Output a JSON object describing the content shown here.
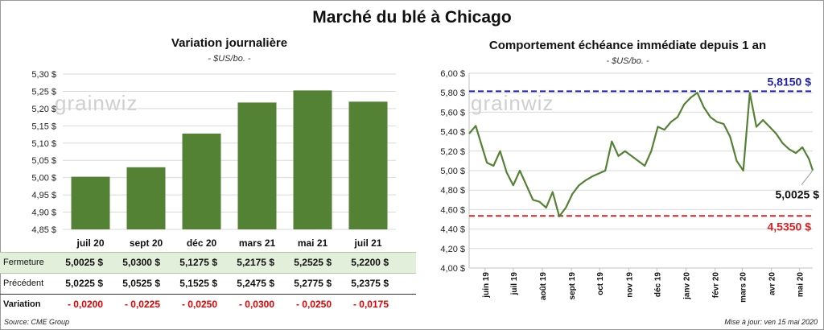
{
  "title": "Marché du blé à Chicago",
  "left": {
    "title": "Variation journalière",
    "unit": "- $US/bo. -",
    "watermark": "grainwiz",
    "row_labels": {
      "close": "Fermeture",
      "previous": "Précédent",
      "change": "Variation"
    },
    "close": [
      "5,0025  $",
      "5,0300  $",
      "5,1275  $",
      "5,2175  $",
      "5,2525  $",
      "5,2200  $"
    ],
    "previous": [
      "5,0225  $",
      "5,0525  $",
      "5,1525  $",
      "5,2475  $",
      "5,2775  $",
      "5,2375  $"
    ],
    "change": [
      "- 0,0200",
      "- 0,0225",
      "- 0,0250",
      "- 0,0300",
      "- 0,0250",
      "- 0,0175"
    ]
  },
  "right": {
    "title": "Comportement  échéance immédiate depuis 1 an",
    "unit": "- $US/bo. -",
    "watermark": "grainwiz"
  },
  "footer": {
    "source": "Source: CME Group",
    "updated": "Mise à jour: ven 15 mai 2020"
  },
  "colors": {
    "bar": "#548235",
    "line": "#548235",
    "high": "#1f1fb4",
    "low": "#e02020",
    "table_bg": "#e2efda",
    "negative": "#e00000"
  },
  "chart_data": [
    {
      "type": "bar",
      "title": "Variation journalière",
      "ylabel": "- $US/bo. -",
      "categories": [
        "juil 20",
        "sept 20",
        "déc 20",
        "mars 21",
        "mai 21",
        "juil 21"
      ],
      "values": [
        5.0025,
        5.03,
        5.1275,
        5.2175,
        5.2525,
        5.22
      ],
      "ylim": [
        4.85,
        5.3
      ],
      "yticks": [
        "4,85 $",
        "4,90 $",
        "4,95 $",
        "5,00 $",
        "5,05 $",
        "5,10 $",
        "5,15 $",
        "5,20 $",
        "5,25 $",
        "5,30 $"
      ],
      "grid": true
    },
    {
      "type": "line",
      "title": "Comportement  échéance immédiate depuis 1 an",
      "ylabel": "- $US/bo. -",
      "ylim": [
        4.0,
        6.0
      ],
      "yticks": [
        "4,00 $",
        "4,20 $",
        "4,40 $",
        "4,60 $",
        "4,80 $",
        "5,00 $",
        "5,20 $",
        "5,40 $",
        "5,60 $",
        "5,80 $",
        "6,00 $"
      ],
      "xlabels": [
        "juin 19",
        "juil 19",
        "août 19",
        "sept 19",
        "oct 19",
        "nov 19",
        "déc 19",
        "janv 20",
        "févr 20",
        "mars 20",
        "avr 20",
        "mai 20"
      ],
      "x": [
        "2019-05-15",
        "2019-05-22",
        "2019-05-29",
        "2019-06-03",
        "2019-06-10",
        "2019-06-17",
        "2019-06-24",
        "2019-07-01",
        "2019-07-08",
        "2019-07-15",
        "2019-07-22",
        "2019-07-29",
        "2019-08-05",
        "2019-08-12",
        "2019-08-19",
        "2019-08-26",
        "2019-09-02",
        "2019-09-09",
        "2019-09-16",
        "2019-09-23",
        "2019-09-30",
        "2019-10-07",
        "2019-10-14",
        "2019-10-21",
        "2019-10-28",
        "2019-11-04",
        "2019-11-11",
        "2019-11-18",
        "2019-11-25",
        "2019-12-02",
        "2019-12-09",
        "2019-12-16",
        "2019-12-23",
        "2019-12-30",
        "2020-01-06",
        "2020-01-13",
        "2020-01-20",
        "2020-01-27",
        "2020-02-03",
        "2020-02-10",
        "2020-02-17",
        "2020-02-24",
        "2020-03-02",
        "2020-03-09",
        "2020-03-16",
        "2020-03-23",
        "2020-03-30",
        "2020-04-06",
        "2020-04-13",
        "2020-04-20",
        "2020-04-27",
        "2020-05-04",
        "2020-05-11",
        "2020-05-15"
      ],
      "series": [
        {
          "values": [
            5.38,
            5.46,
            5.24,
            5.08,
            5.05,
            5.2,
            4.98,
            4.85,
            5.0,
            4.85,
            4.7,
            4.68,
            4.62,
            4.78,
            4.53,
            4.62,
            4.76,
            4.85,
            4.9,
            4.94,
            4.97,
            5.0,
            5.3,
            5.15,
            5.2,
            5.15,
            5.1,
            5.05,
            5.2,
            5.45,
            5.42,
            5.5,
            5.55,
            5.68,
            5.75,
            5.8,
            5.65,
            5.55,
            5.5,
            5.48,
            5.35,
            5.1,
            5.0,
            5.8,
            5.45,
            5.52,
            5.45,
            5.38,
            5.28,
            5.22,
            5.18,
            5.24,
            5.12,
            5.0025
          ]
        }
      ],
      "reference_lines": [
        {
          "value": 5.815,
          "label": "5,8150 $",
          "color": "#1f1fb4"
        },
        {
          "value": 4.535,
          "label": "4,5350 $",
          "color": "#e02020"
        }
      ],
      "last_label": "5,0025 $",
      "grid": true
    }
  ]
}
